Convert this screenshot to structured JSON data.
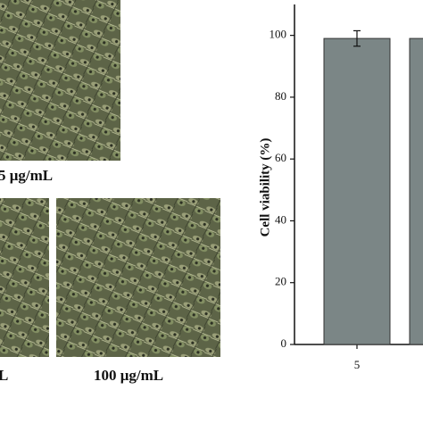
{
  "images": [
    {
      "label": "5 μg/mL"
    },
    {
      "label": "L"
    },
    {
      "label": "100 μg/mL"
    }
  ],
  "chart_data": {
    "type": "bar",
    "ylabel": "Cell viability (%)",
    "categories": [
      "5",
      null
    ],
    "values": [
      99,
      99
    ],
    "errors": [
      2.5,
      null
    ],
    "color": "#7b8686",
    "ylim": [
      0,
      110
    ],
    "yticks": [
      0,
      20,
      40,
      60,
      80,
      100
    ]
  }
}
